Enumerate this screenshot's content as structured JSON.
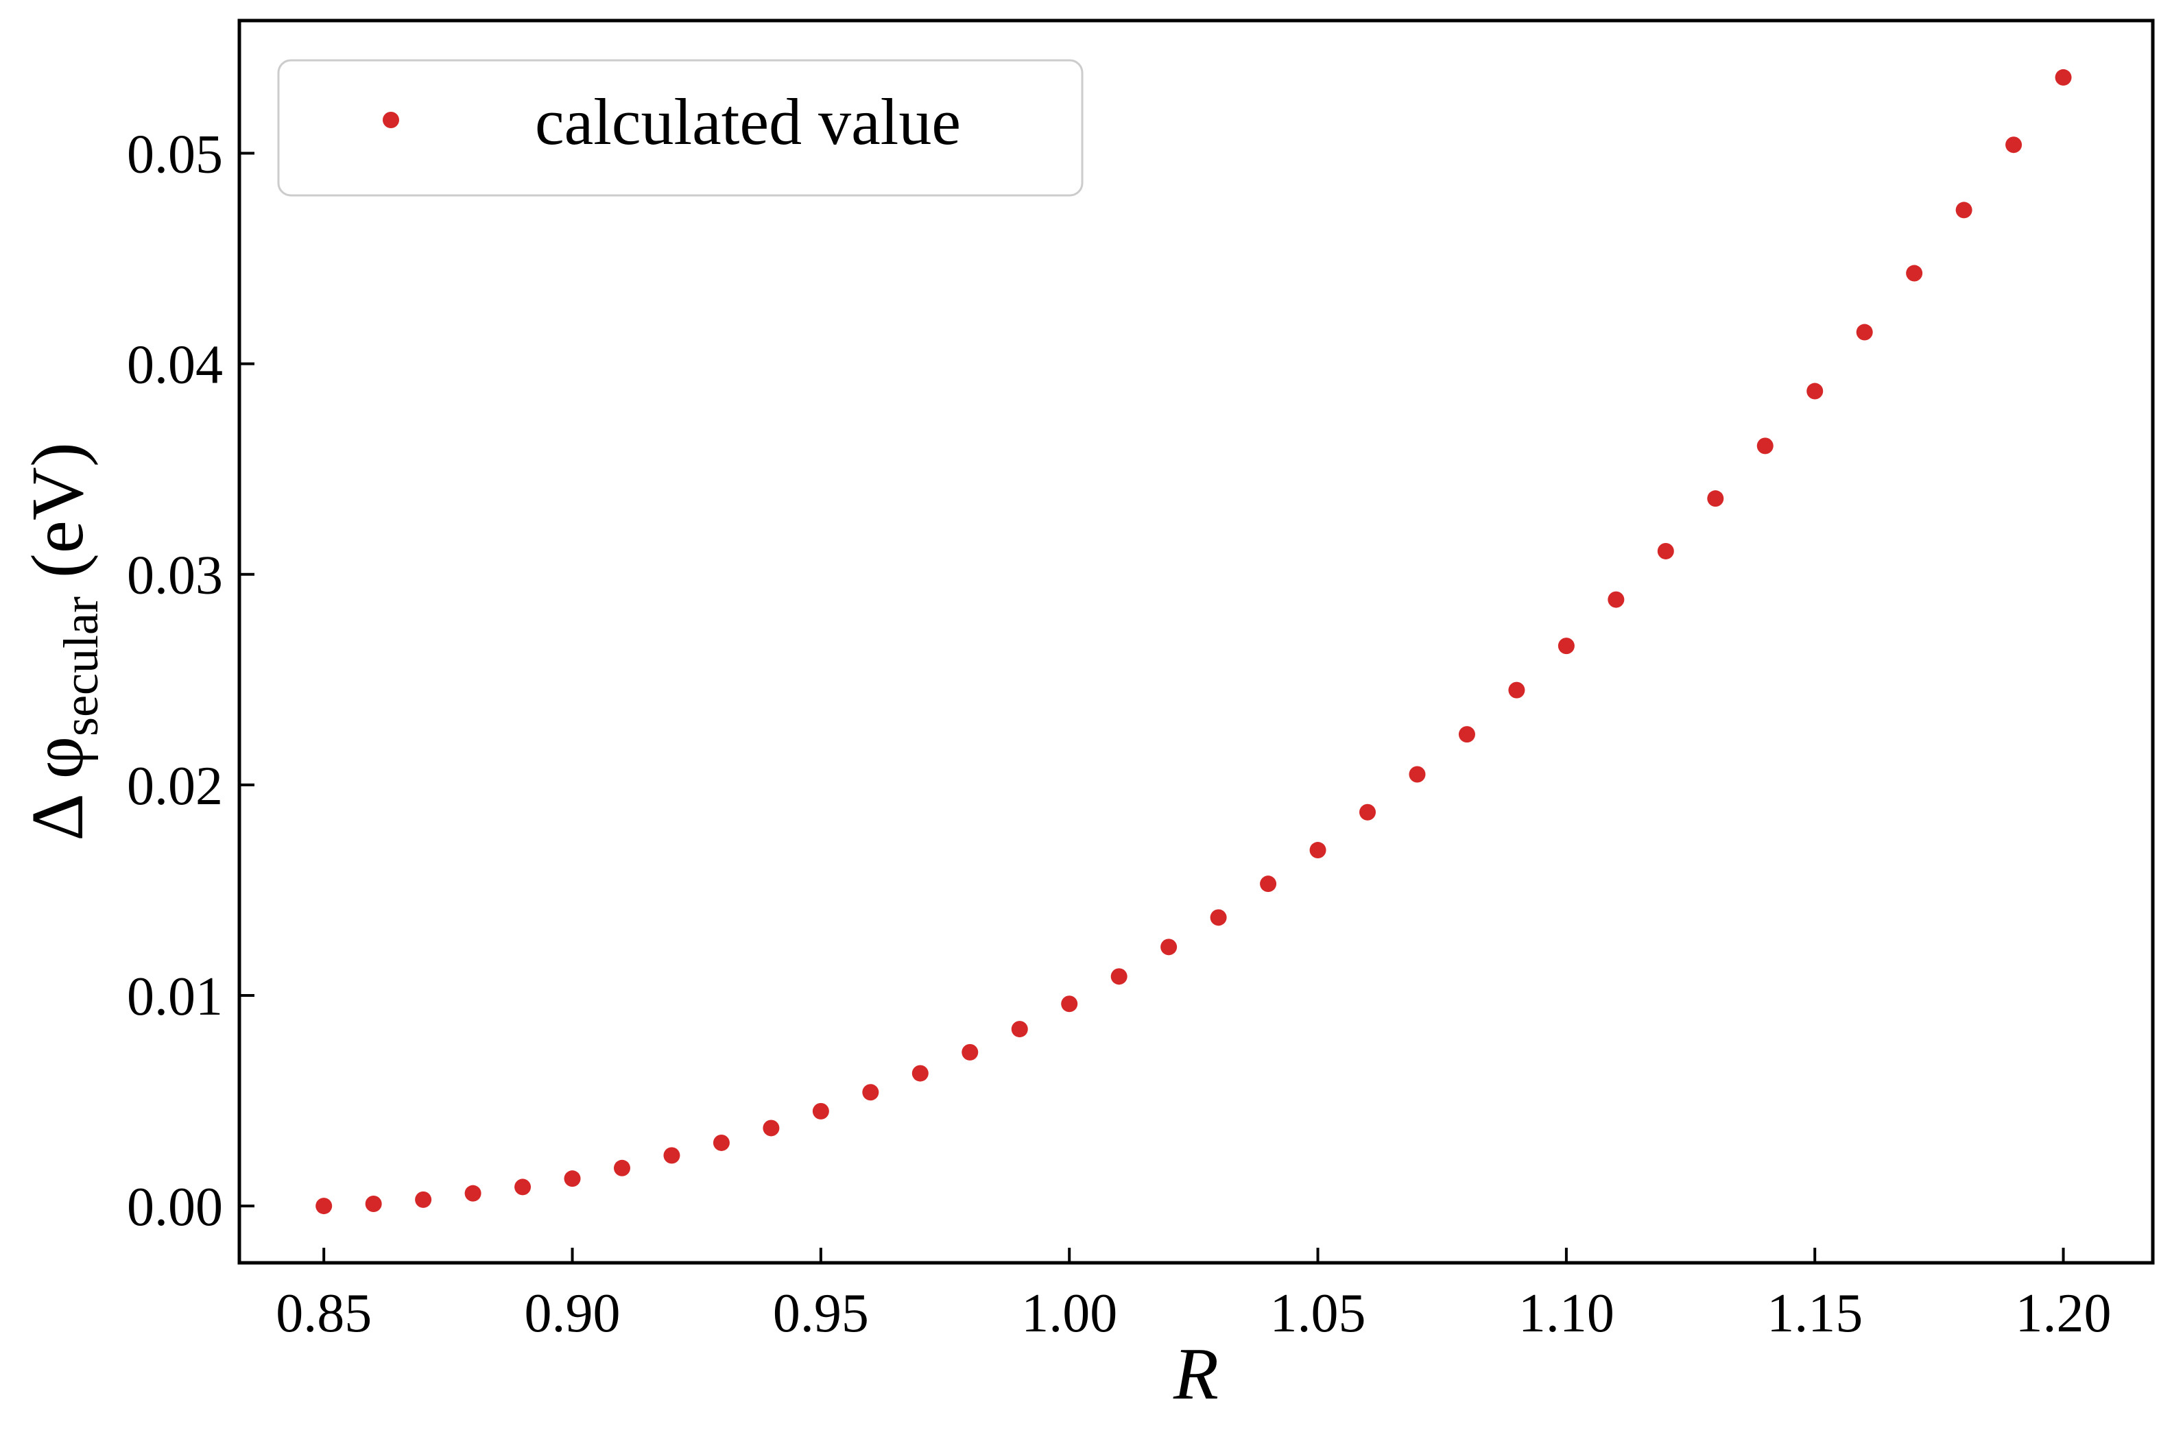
{
  "chart_data": {
    "type": "scatter",
    "xlabel": "R",
    "ylabel": {
      "prefix": "Δ φ",
      "subscript": "secular",
      "suffix": " (eV)"
    },
    "xlim": [
      0.833,
      1.218
    ],
    "ylim": [
      -0.0027,
      0.0563
    ],
    "xticks": [
      "0.85",
      "0.90",
      "0.95",
      "1.00",
      "1.05",
      "1.10",
      "1.15",
      "1.20"
    ],
    "yticks": [
      "0.00",
      "0.01",
      "0.02",
      "0.03",
      "0.04",
      "0.05"
    ],
    "grid": false,
    "legend_position": "top-left",
    "marker_color": "#d62728",
    "series": [
      {
        "name": "calculated value",
        "x": [
          0.85,
          0.86,
          0.87,
          0.88,
          0.89,
          0.9,
          0.91,
          0.92,
          0.93,
          0.94,
          0.95,
          0.96,
          0.97,
          0.98,
          0.99,
          1.0,
          1.01,
          1.02,
          1.03,
          1.04,
          1.05,
          1.06,
          1.07,
          1.08,
          1.09,
          1.1,
          1.11,
          1.12,
          1.13,
          1.14,
          1.15,
          1.16,
          1.17,
          1.18,
          1.19,
          1.2
        ],
        "y": [
          0.0,
          0.0001,
          0.0003,
          0.0006,
          0.0009,
          0.0013,
          0.0018,
          0.0024,
          0.003,
          0.0037,
          0.0045,
          0.0054,
          0.0063,
          0.0073,
          0.0084,
          0.0096,
          0.0109,
          0.0123,
          0.0137,
          0.0153,
          0.0169,
          0.0187,
          0.0205,
          0.0224,
          0.0245,
          0.0266,
          0.0288,
          0.0311,
          0.0336,
          0.0361,
          0.0387,
          0.0415,
          0.0443,
          0.0473,
          0.0504,
          0.0536
        ]
      }
    ]
  }
}
